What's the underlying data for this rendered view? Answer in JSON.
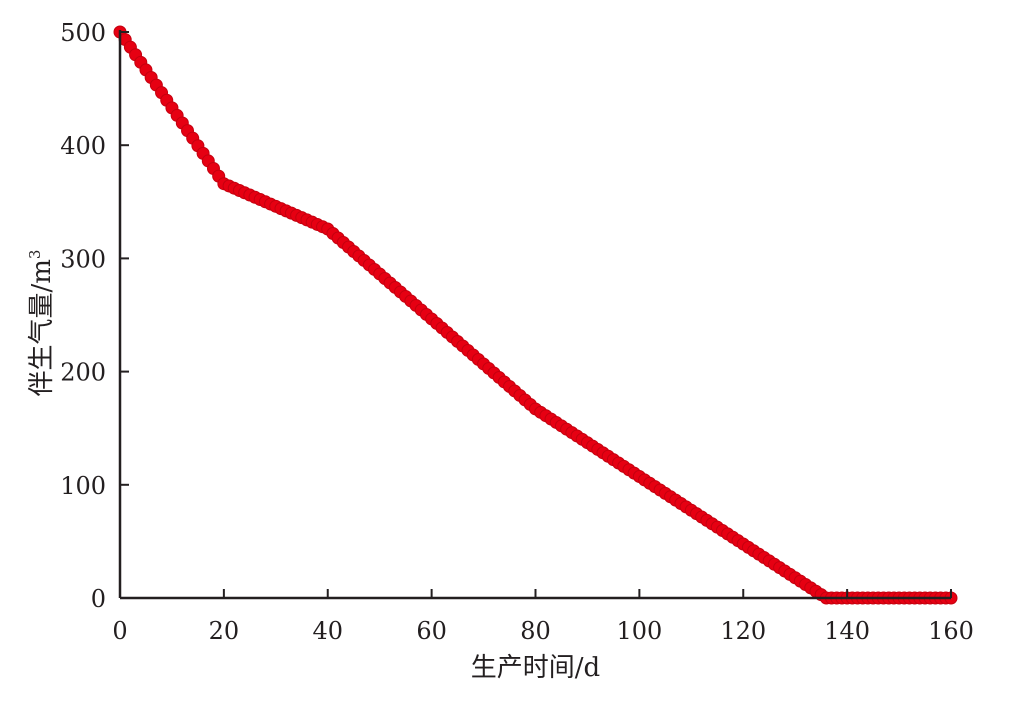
{
  "chart_data": {
    "type": "scatter",
    "title": "",
    "xlabel": "生产时间/d",
    "ylabel": "伴生气量/m",
    "ylabel_superscript": "3",
    "xlim": [
      0,
      160
    ],
    "ylim": [
      0,
      500
    ],
    "xticks": [
      "0",
      "20",
      "40",
      "60",
      "80",
      "100",
      "120",
      "140",
      "160"
    ],
    "yticks": [
      "0",
      "100",
      "200",
      "300",
      "400",
      "500"
    ],
    "grid": false,
    "legend": "none",
    "marker_color": "#e60012",
    "marker_edge_color": "#c4000f",
    "breakpoints": [
      {
        "x": 0,
        "y": 500
      },
      {
        "x": 20,
        "y": 366
      },
      {
        "x": 40,
        "y": 326
      },
      {
        "x": 80,
        "y": 167
      },
      {
        "x": 136,
        "y": 0
      },
      {
        "x": 160,
        "y": 0
      }
    ],
    "x_step": 1
  }
}
